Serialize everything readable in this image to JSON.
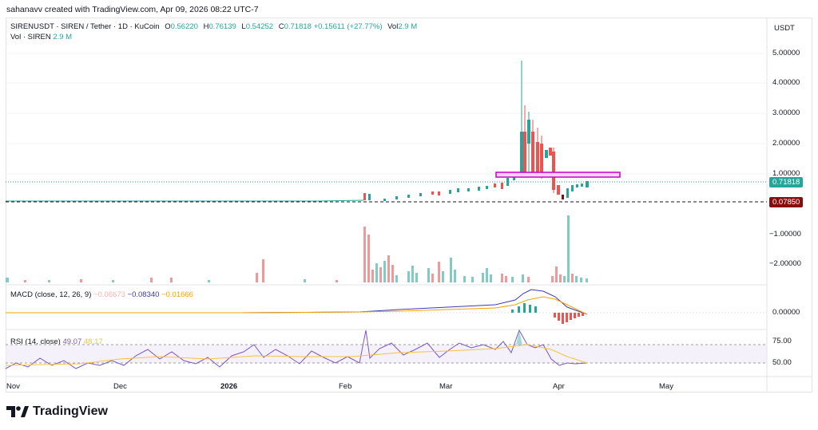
{
  "credit": "sahanavv created with TradingView.com, Apr 09, 2026 08:22 UTC-7",
  "legend": {
    "symbol": "SIRENUSDT · SIREN / Tether · 1D · KuCoin",
    "open_label": "O",
    "open": "0.56220",
    "high_label": "H",
    "high": "0.76139",
    "low_label": "L",
    "low": "0.54252",
    "close_label": "C",
    "close": "0.71818",
    "change": "+0.15611 (+27.77%)",
    "vol_label": "Vol",
    "vol": "2.9 M",
    "vol_series_label": "Vol · SIREN",
    "vol_series_value": "2.9 M"
  },
  "currency": "USDT",
  "price_axis": [
    "5.00000",
    "4.00000",
    "3.00000",
    "2.00000",
    "1.00000"
  ],
  "volume_axis": [
    "−1.00000",
    "−2.00000"
  ],
  "macd": {
    "label": "MACD (close, 12, 26, 9)",
    "hist": "−0.06673",
    "macd": "−0.08340",
    "signal": "−0.01666",
    "axis": "0.00000"
  },
  "rsi": {
    "label": "RSI (14, close)",
    "rsi": "49.07",
    "ma": "48.17",
    "axis": [
      "75.00",
      "50.00"
    ]
  },
  "price_tag": "0.71818",
  "low_tag": "0.07850",
  "x_labels": [
    "Nov",
    "Dec",
    "2026",
    "Feb",
    "Mar",
    "Apr",
    "May"
  ],
  "brand": "TradingView",
  "colors": {
    "up": "#26a69a",
    "down": "#ef5350",
    "up_light": "#80cbc4",
    "down_light": "#ef9a9a",
    "zone": "#c800c8",
    "macd": "#3d3ab0",
    "signal": "#f4a300",
    "rsi": "#7e57c2",
    "rsi_ma": "#f6c343"
  }
}
